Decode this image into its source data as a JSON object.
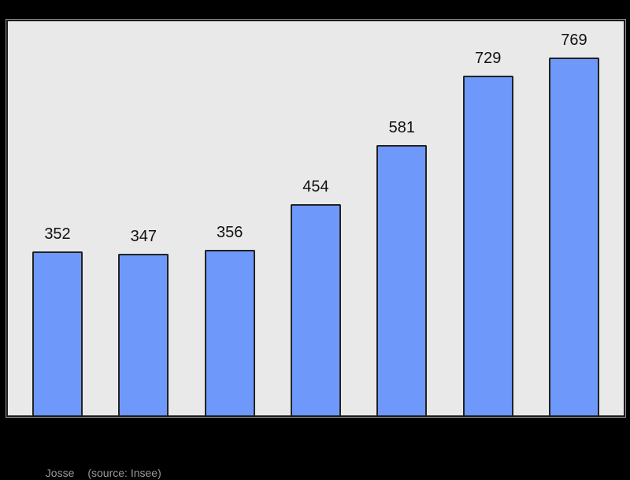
{
  "page": {
    "background": "#000000"
  },
  "chart_data": {
    "type": "bar",
    "values": [
      352,
      347,
      356,
      454,
      581,
      729,
      769
    ],
    "title": "",
    "xlabel": "",
    "ylabel": "",
    "ylim": [
      0,
      846
    ],
    "grid": false,
    "legend": "none",
    "value_labels_shown": true,
    "bar_color": "#6e99fa",
    "bar_border_color": "#222222",
    "plot_background": "#e9e9e9",
    "plot_border_color": "#1c1c1c",
    "value_label_color": "#111111"
  },
  "caption": {
    "title": "Josse",
    "source": "(source: Insee)",
    "color": "#999999"
  }
}
